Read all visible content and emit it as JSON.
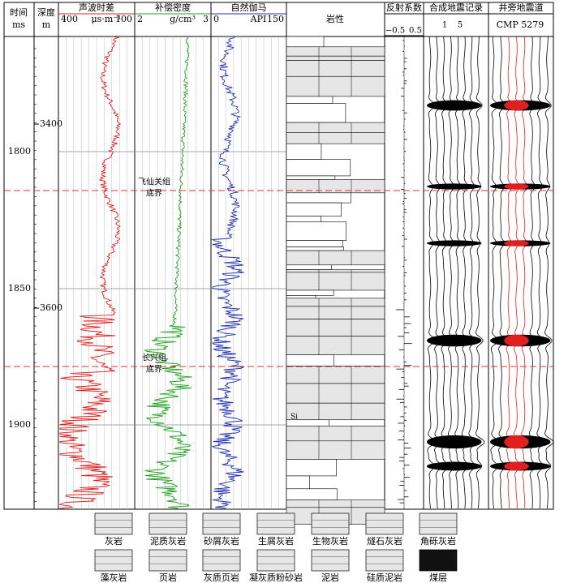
{
  "columns": {
    "time": {
      "title": "时间",
      "unit": "ms"
    },
    "depth": {
      "title": "深度",
      "unit": "m"
    },
    "sonic": {
      "title": "声波时差",
      "left": "400",
      "unit": "μs·m⁻¹",
      "right": "100"
    },
    "density": {
      "title": "补偿密度",
      "left": "2",
      "unit": "g/cm³",
      "right": "3"
    },
    "gamma": {
      "title": "自然伽马",
      "left": "0",
      "unit": "API",
      "right": "150"
    },
    "lithology": {
      "title": "岩性",
      "marker": "Si"
    },
    "reflection": {
      "title": "反射系数",
      "left": "−0.5",
      "right": "0.5"
    },
    "synthetic": {
      "title": "合成地震记录",
      "left": "1",
      "right": "5"
    },
    "seismic": {
      "title": "井旁地震道",
      "trace": "CMP 5279"
    }
  },
  "time_ticks": [
    "1800",
    "1850",
    "1900"
  ],
  "depth_ticks": [
    "3400",
    "3600"
  ],
  "boundaries": [
    {
      "line1": "飞仙关组",
      "line2": "底界"
    },
    {
      "line1": "长兴组",
      "line2": "底界"
    }
  ],
  "legend": [
    "灰岩",
    "泥质灰岩",
    "砂屑灰岩",
    "生屑灰岩",
    "生物灰岩",
    "燧石灰岩",
    "角砾灰岩",
    "藻灰岩",
    "页岩",
    "灰质页岩",
    "凝灰质粉砂岩",
    "泥岩",
    "硅质泥岩",
    "煤层"
  ]
}
